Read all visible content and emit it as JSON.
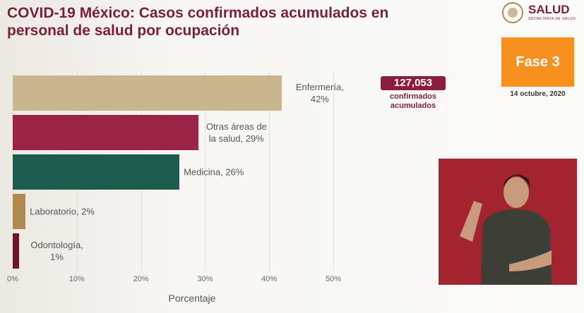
{
  "chart_data": {
    "type": "bar",
    "orientation": "horizontal",
    "title": "COVID-19 México: Casos confirmados acumulados en personal de salud por ocupación",
    "values": [
      42,
      29,
      26,
      2,
      1
    ],
    "value_labels": [
      "Enfermería, 42%",
      "Otras áreas de la salud, 29%",
      "Medicina, 26%",
      "Laboratorio, 2%",
      "Odontología, 1%"
    ],
    "colors": [
      "#c9b68f",
      "#9b2346",
      "#1e5b4f",
      "#b08a50",
      "#6b1530"
    ],
    "xlim": [
      0,
      50
    ],
    "xticks": [
      {
        "value": 0,
        "label": "0%"
      },
      {
        "value": 10,
        "label": "10%"
      },
      {
        "value": 20,
        "label": "20%"
      },
      {
        "value": 30,
        "label": "30%"
      },
      {
        "value": 40,
        "label": "40%"
      },
      {
        "value": 50,
        "label": "50%"
      }
    ],
    "xlabel": "Porcentaje",
    "grid": true
  },
  "total": {
    "value": 127053,
    "label": "127,053"
  },
  "total_caption": "confirmados acumulados",
  "phase": "Fase 3",
  "date": "14 octubre, 2020",
  "logo": {
    "name": "SALUD",
    "subtitle": "SECRETARÍA DE SALUD"
  }
}
